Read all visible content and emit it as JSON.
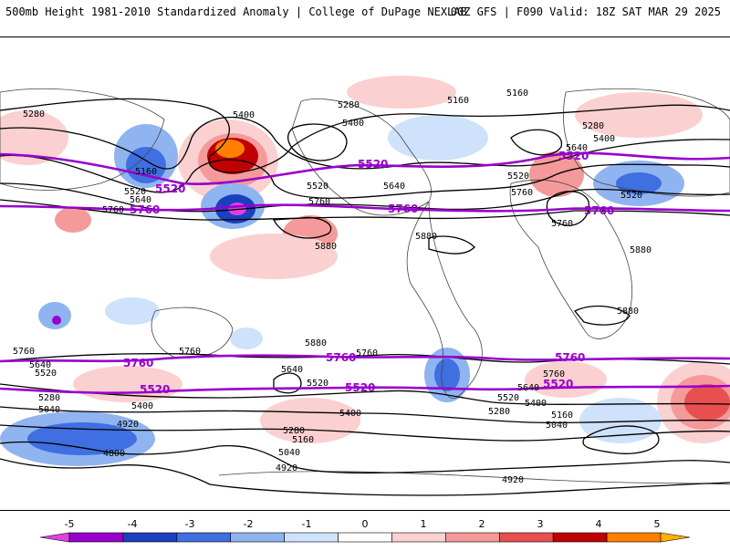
{
  "header": {
    "title": "500mb Height 1981-2010 Standardized Anomaly | College of DuPage NEXLAB",
    "run_info": "00Z GFS | F090 Valid: 18Z SAT MAR 29 2025"
  },
  "map": {
    "contour_line_color": "#000000",
    "highlight_contour_color": "#9900cc",
    "height_labels": [
      "5280",
      "5400",
      "5160",
      "5520",
      "5640",
      "5760",
      "5880",
      "4920",
      "4800",
      "5040"
    ],
    "highlight_labels": [
      "5520",
      "5760"
    ]
  },
  "colorbar": {
    "ticks": [
      "-5",
      "-4",
      "-3",
      "-2",
      "-1",
      "0",
      "1",
      "2",
      "3",
      "4",
      "5"
    ],
    "colors": [
      "#e040e0",
      "#9900cc",
      "#1a3fbf",
      "#3f6fe0",
      "#8fb4f0",
      "#cfe2fb",
      "#ffffff",
      "#fbd0d0",
      "#f49a9a",
      "#e85050",
      "#c00000",
      "#ff8000",
      "#ffb000"
    ]
  }
}
